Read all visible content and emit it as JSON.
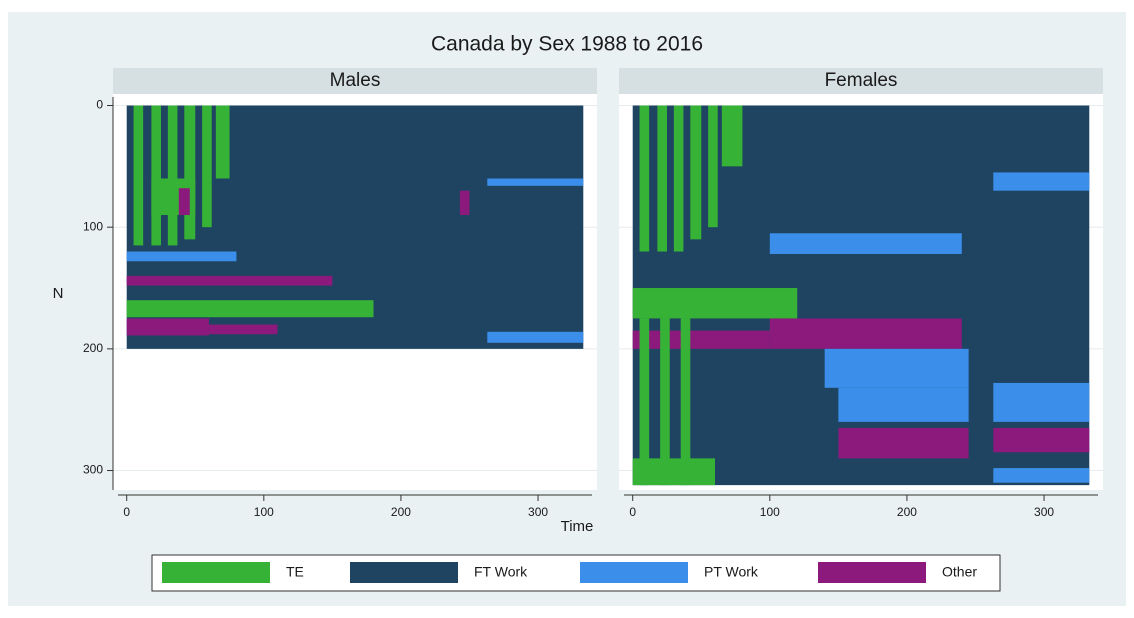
{
  "title": "Canada by Sex 1988 to 2016",
  "legend": [
    {
      "name": "TE",
      "color": "#36b236"
    },
    {
      "name": "FT Work",
      "color": "#1f4462"
    },
    {
      "name": "PT Work",
      "color": "#3b8fea"
    },
    {
      "name": "Other",
      "color": "#8b1a7c"
    }
  ],
  "chart_data": [
    {
      "type": "sequence",
      "title": "Males",
      "xlabel": "Time",
      "ylabel": "N",
      "xlim": [
        -10,
        343
      ],
      "ylim": [
        -7,
        316
      ],
      "xticks": [
        0,
        100,
        200,
        300
      ],
      "yticks": [
        0,
        100,
        200,
        300
      ],
      "grid": true,
      "segments": [
        {
          "n": [
            0,
            200
          ],
          "t": [
            0,
            333
          ],
          "state": 1
        },
        {
          "n": [
            0,
            115
          ],
          "t": [
            5,
            12
          ],
          "state": 0
        },
        {
          "n": [
            0,
            115
          ],
          "t": [
            18,
            25
          ],
          "state": 0
        },
        {
          "n": [
            0,
            115
          ],
          "t": [
            30,
            37
          ],
          "state": 0
        },
        {
          "n": [
            0,
            110
          ],
          "t": [
            42,
            50
          ],
          "state": 0
        },
        {
          "n": [
            0,
            100
          ],
          "t": [
            55,
            62
          ],
          "state": 0
        },
        {
          "n": [
            0,
            60
          ],
          "t": [
            65,
            75
          ],
          "state": 0
        },
        {
          "n": [
            60,
            90
          ],
          "t": [
            18,
            50
          ],
          "state": 0
        },
        {
          "n": [
            68,
            90
          ],
          "t": [
            38,
            46
          ],
          "state": 3
        },
        {
          "n": [
            120,
            128
          ],
          "t": [
            0,
            80
          ],
          "state": 2
        },
        {
          "n": [
            140,
            148
          ],
          "t": [
            0,
            150
          ],
          "state": 3
        },
        {
          "n": [
            160,
            174
          ],
          "t": [
            0,
            180
          ],
          "state": 0
        },
        {
          "n": [
            175,
            189
          ],
          "t": [
            0,
            60
          ],
          "state": 3
        },
        {
          "n": [
            180,
            188
          ],
          "t": [
            60,
            110
          ],
          "state": 3
        },
        {
          "n": [
            70,
            90
          ],
          "t": [
            243,
            250
          ],
          "state": 3
        },
        {
          "n": [
            60,
            66
          ],
          "t": [
            263,
            333
          ],
          "state": 2
        },
        {
          "n": [
            186,
            195
          ],
          "t": [
            263,
            333
          ],
          "state": 2
        }
      ]
    },
    {
      "type": "sequence",
      "title": "Females",
      "xlim": [
        -10,
        343
      ],
      "ylim": [
        -7,
        316
      ],
      "xticks": [
        0,
        100,
        200,
        300
      ],
      "yticks": [
        0,
        100,
        200,
        300
      ],
      "grid": true,
      "segments": [
        {
          "n": [
            0,
            312
          ],
          "t": [
            0,
            333
          ],
          "state": 1
        },
        {
          "n": [
            0,
            120
          ],
          "t": [
            5,
            12
          ],
          "state": 0
        },
        {
          "n": [
            0,
            120
          ],
          "t": [
            18,
            25
          ],
          "state": 0
        },
        {
          "n": [
            0,
            120
          ],
          "t": [
            30,
            37
          ],
          "state": 0
        },
        {
          "n": [
            0,
            110
          ],
          "t": [
            42,
            50
          ],
          "state": 0
        },
        {
          "n": [
            0,
            100
          ],
          "t": [
            55,
            62
          ],
          "state": 0
        },
        {
          "n": [
            0,
            50
          ],
          "t": [
            65,
            80
          ],
          "state": 0
        },
        {
          "n": [
            105,
            122
          ],
          "t": [
            100,
            240
          ],
          "state": 2
        },
        {
          "n": [
            55,
            70
          ],
          "t": [
            263,
            333
          ],
          "state": 2
        },
        {
          "n": [
            150,
            175
          ],
          "t": [
            0,
            120
          ],
          "state": 0
        },
        {
          "n": [
            175,
            200
          ],
          "t": [
            100,
            240
          ],
          "state": 3
        },
        {
          "n": [
            185,
            200
          ],
          "t": [
            0,
            100
          ],
          "state": 3
        },
        {
          "n": [
            175,
            312
          ],
          "t": [
            5,
            12
          ],
          "state": 0
        },
        {
          "n": [
            175,
            312
          ],
          "t": [
            20,
            27
          ],
          "state": 0
        },
        {
          "n": [
            175,
            312
          ],
          "t": [
            35,
            42
          ],
          "state": 0
        },
        {
          "n": [
            200,
            232
          ],
          "t": [
            140,
            245
          ],
          "state": 2
        },
        {
          "n": [
            232,
            260
          ],
          "t": [
            150,
            245
          ],
          "state": 2
        },
        {
          "n": [
            228,
            260
          ],
          "t": [
            263,
            333
          ],
          "state": 2
        },
        {
          "n": [
            265,
            290
          ],
          "t": [
            150,
            245
          ],
          "state": 3
        },
        {
          "n": [
            265,
            285
          ],
          "t": [
            263,
            333
          ],
          "state": 3
        },
        {
          "n": [
            290,
            312
          ],
          "t": [
            0,
            60
          ],
          "state": 0
        },
        {
          "n": [
            298,
            310
          ],
          "t": [
            263,
            333
          ],
          "state": 2
        }
      ]
    }
  ]
}
